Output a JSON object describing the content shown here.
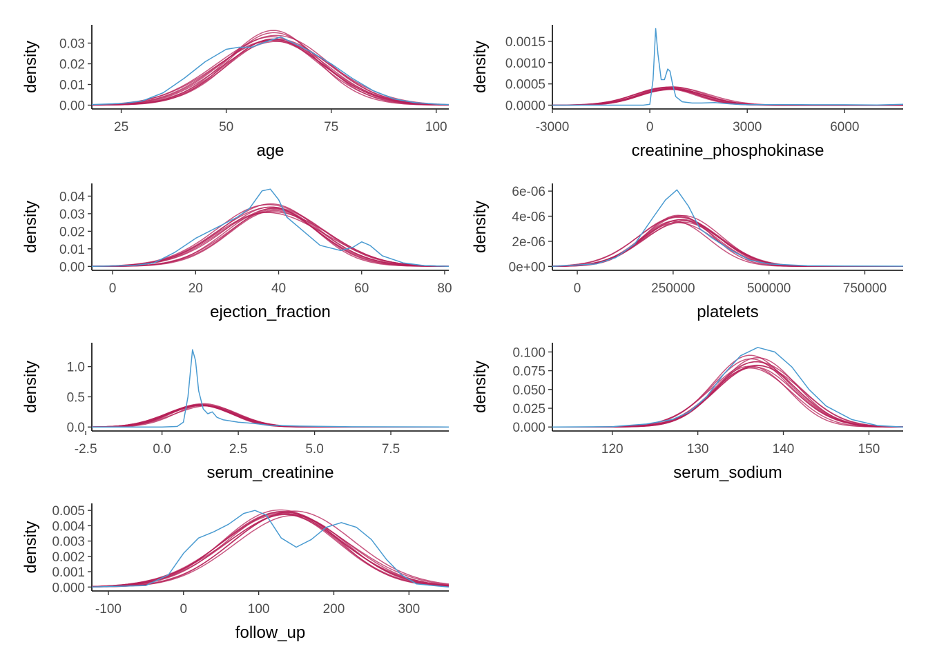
{
  "colors": {
    "observed": "#4a9bd1",
    "imputed": "#b51f57"
  },
  "chart_data": [
    {
      "type": "line",
      "xlabel": "age",
      "ylabel": "density",
      "xlim": [
        18,
        103
      ],
      "ylim": [
        0,
        0.037
      ],
      "x_ticks": [
        25,
        50,
        75,
        100
      ],
      "x_tick_labels": [
        "25",
        "50",
        "75",
        "100"
      ],
      "y_ticks": [
        0,
        0.01,
        0.02,
        0.03
      ],
      "y_tick_labels": [
        "0.00",
        "0.01",
        "0.02",
        "0.03"
      ],
      "observed": {
        "x": [
          18,
          25,
          30,
          35,
          40,
          45,
          50,
          53,
          56,
          60,
          63,
          66,
          70,
          75,
          80,
          85,
          90,
          95,
          100,
          103
        ],
        "y": [
          0.0003,
          0.0008,
          0.002,
          0.006,
          0.013,
          0.021,
          0.027,
          0.028,
          0.028,
          0.031,
          0.033,
          0.03,
          0.026,
          0.02,
          0.013,
          0.007,
          0.003,
          0.0012,
          0.0005,
          0.0003
        ]
      },
      "imputed": {
        "mean": 61.5,
        "sd": 12.5,
        "peak": 0.033,
        "spread": 0.0025
      }
    },
    {
      "type": "line",
      "xlabel": "creatinine_phosphokinase",
      "ylabel": "density",
      "xlim": [
        -3000,
        7800
      ],
      "ylim": [
        0,
        0.0018
      ],
      "x_ticks": [
        -3000,
        0,
        3000,
        6000
      ],
      "x_tick_labels": [
        "-3000",
        "0",
        "3000",
        "6000"
      ],
      "y_ticks": [
        0,
        0.0005,
        0.001,
        0.0015
      ],
      "y_tick_labels": [
        "0.0000",
        "0.0005",
        "0.0010",
        "0.0015"
      ],
      "observed": {
        "x": [
          -3000,
          -200,
          0,
          100,
          180,
          250,
          350,
          450,
          550,
          620,
          700,
          800,
          1000,
          1300,
          1600,
          2000,
          2500,
          3000,
          4000,
          5000,
          6000,
          7000,
          7800
        ],
        "y": [
          0,
          0,
          2e-05,
          0.0006,
          0.0018,
          0.0012,
          0.0006,
          0.0006,
          0.00085,
          0.0008,
          0.0005,
          0.0002,
          8e-05,
          5e-05,
          5e-05,
          6e-05,
          3e-05,
          1e-05,
          1.5e-05,
          1e-05,
          1e-05,
          5e-06,
          2e-05
        ]
      },
      "imputed": {
        "mean": 600,
        "sd": 1000,
        "peak": 0.0004,
        "spread": 4e-05
      }
    },
    {
      "type": "line",
      "xlabel": "ejection_fraction",
      "ylabel": "density",
      "xlim": [
        -5,
        81
      ],
      "ylim": [
        0,
        0.045
      ],
      "x_ticks": [
        0,
        20,
        40,
        60,
        80
      ],
      "x_tick_labels": [
        "0",
        "20",
        "40",
        "60",
        "80"
      ],
      "y_ticks": [
        0,
        0.01,
        0.02,
        0.03,
        0.04
      ],
      "y_tick_labels": [
        "0.00",
        "0.01",
        "0.02",
        "0.03",
        "0.04"
      ],
      "observed": {
        "x": [
          -5,
          5,
          10,
          15,
          20,
          25,
          30,
          33,
          36,
          38,
          40,
          42,
          45,
          50,
          55,
          58,
          60,
          62,
          65,
          70,
          75,
          81
        ],
        "y": [
          0,
          0.0005,
          0.002,
          0.008,
          0.016,
          0.022,
          0.028,
          0.033,
          0.043,
          0.044,
          0.038,
          0.028,
          0.022,
          0.012,
          0.009,
          0.011,
          0.014,
          0.012,
          0.006,
          0.002,
          0.0005,
          0
        ]
      },
      "imputed": {
        "mean": 39,
        "sd": 12,
        "peak": 0.033,
        "spread": 0.0028
      }
    },
    {
      "type": "line",
      "xlabel": "platelets",
      "ylabel": "density",
      "xlim": [
        -65000,
        850000
      ],
      "ylim": [
        0,
        6.3e-06
      ],
      "x_ticks": [
        0,
        250000,
        500000,
        750000
      ],
      "x_tick_labels": [
        "0",
        "250000",
        "500000",
        "750000"
      ],
      "y_ticks": [
        0,
        2e-06,
        4e-06,
        6e-06
      ],
      "y_tick_labels": [
        "0e+00",
        "2e-06",
        "4e-06",
        "6e-06"
      ],
      "observed": {
        "x": [
          -65000,
          50000,
          100000,
          150000,
          200000,
          230000,
          260000,
          290000,
          320000,
          350000,
          400000,
          450000,
          500000,
          600000,
          700000,
          850000
        ],
        "y": [
          0,
          2e-07,
          7e-07,
          1.8e-06,
          4e-06,
          5.3e-06,
          6.1e-06,
          4.8e-06,
          3e-06,
          2.3e-06,
          1.3e-06,
          5e-07,
          2e-07,
          5e-08,
          3e-08,
          2e-08
        ]
      },
      "imputed": {
        "mean": 265000,
        "sd": 98000,
        "peak": 3.8e-06,
        "spread": 3e-07
      }
    },
    {
      "type": "line",
      "xlabel": "serum_creatinine",
      "ylabel": "density",
      "xlim": [
        -2.3,
        9.4
      ],
      "ylim": [
        0,
        1.33
      ],
      "x_ticks": [
        -2.5,
        0,
        2.5,
        5,
        7.5
      ],
      "x_tick_labels": [
        "-2.5",
        "0.0",
        "2.5",
        "5.0",
        "7.5"
      ],
      "y_ticks": [
        0,
        0.5,
        1
      ],
      "y_tick_labels": [
        "0.0",
        "0.5",
        "1.0"
      ],
      "observed": {
        "x": [
          -2.3,
          0,
          0.5,
          0.7,
          0.85,
          1.0,
          1.1,
          1.2,
          1.35,
          1.5,
          1.65,
          1.8,
          2.0,
          2.5,
          3.0,
          3.5,
          4.5,
          6,
          9.4
        ],
        "y": [
          0,
          0,
          0.01,
          0.08,
          0.5,
          1.28,
          1.1,
          0.6,
          0.3,
          0.22,
          0.25,
          0.16,
          0.12,
          0.08,
          0.06,
          0.03,
          0.015,
          0.005,
          0
        ]
      },
      "imputed": {
        "mean": 1.35,
        "sd": 1.05,
        "peak": 0.37,
        "spread": 0.02
      }
    },
    {
      "type": "line",
      "xlabel": "serum_sodium",
      "ylabel": "density",
      "xlim": [
        113,
        154
      ],
      "ylim": [
        0,
        0.107
      ],
      "x_ticks": [
        120,
        130,
        140,
        150
      ],
      "x_tick_labels": [
        "120",
        "130",
        "140",
        "150"
      ],
      "y_ticks": [
        0,
        0.025,
        0.05,
        0.075,
        0.1
      ],
      "y_tick_labels": [
        "0.000",
        "0.025",
        "0.050",
        "0.075",
        "0.100"
      ],
      "observed": {
        "x": [
          113,
          120,
          124,
          127,
          129,
          131,
          133,
          135,
          137,
          139,
          141,
          143,
          145,
          148,
          151,
          154
        ],
        "y": [
          0,
          0.0005,
          0.004,
          0.01,
          0.02,
          0.04,
          0.07,
          0.095,
          0.106,
          0.1,
          0.08,
          0.05,
          0.028,
          0.01,
          0.002,
          0
        ]
      },
      "imputed": {
        "mean": 136.6,
        "sd": 4.6,
        "peak": 0.086,
        "spread": 0.009
      }
    },
    {
      "type": "line",
      "xlabel": "follow_up",
      "ylabel": "density",
      "xlim": [
        -122,
        353
      ],
      "ylim": [
        0,
        0.0052
      ],
      "x_ticks": [
        -100,
        0,
        100,
        200,
        300
      ],
      "x_tick_labels": [
        "-100",
        "0",
        "100",
        "200",
        "300"
      ],
      "y_ticks": [
        0,
        0.001,
        0.002,
        0.003,
        0.004,
        0.005
      ],
      "y_tick_labels": [
        "0.000",
        "0.001",
        "0.002",
        "0.003",
        "0.004",
        "0.005"
      ],
      "observed": {
        "x": [
          -122,
          -50,
          -20,
          0,
          20,
          40,
          60,
          80,
          95,
          110,
          130,
          150,
          170,
          190,
          210,
          230,
          250,
          270,
          290,
          310,
          353
        ],
        "y": [
          0,
          0.0001,
          0.0008,
          0.0022,
          0.0032,
          0.0036,
          0.0041,
          0.0048,
          0.005,
          0.0047,
          0.0032,
          0.0026,
          0.0031,
          0.0039,
          0.0042,
          0.0039,
          0.0031,
          0.0018,
          0.0008,
          0.0002,
          0
        ]
      },
      "imputed": {
        "mean": 135,
        "sd": 80,
        "peak": 0.0049,
        "spread": 0.0002
      }
    }
  ]
}
